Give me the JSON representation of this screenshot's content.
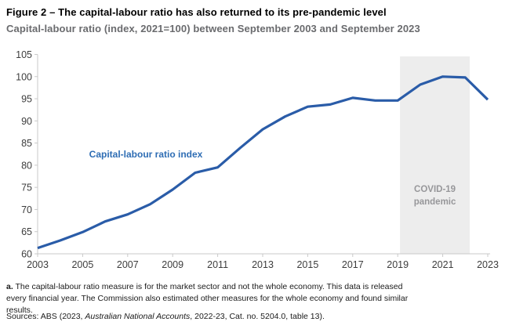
{
  "figure": {
    "title": "Figure 2 – The capital-labour ratio has also returned to its pre-pandemic level",
    "subtitle": "Capital-labour ratio (index, 2021=100) between September 2003 and September 2023"
  },
  "chart_data": {
    "type": "line",
    "title": "Capital-labour ratio (index, 2021=100) between September 2003 and September 2023",
    "x": [
      2003,
      2004,
      2005,
      2006,
      2007,
      2008,
      2009,
      2010,
      2011,
      2012,
      2013,
      2014,
      2015,
      2016,
      2017,
      2018,
      2019,
      2020,
      2021,
      2022,
      2023
    ],
    "values": [
      61.3,
      63.0,
      64.9,
      67.3,
      68.9,
      71.2,
      74.5,
      78.3,
      79.5,
      83.9,
      88.1,
      91.0,
      93.2,
      93.7,
      95.2,
      94.6,
      94.6,
      98.2,
      100.0,
      99.8,
      94.8
    ],
    "series_label": "Capital-labour ratio index",
    "xlabel": "",
    "ylabel": "",
    "xlim": [
      2003,
      2023
    ],
    "ylim": [
      60,
      105
    ],
    "x_ticks": [
      2003,
      2005,
      2007,
      2009,
      2011,
      2013,
      2015,
      2017,
      2019,
      2021,
      2023
    ],
    "y_ticks": [
      60,
      65,
      70,
      75,
      80,
      85,
      90,
      95,
      100,
      105
    ],
    "grid": false,
    "legend_position": "inline-label",
    "annotation_band": {
      "label_line1": "COVID-19",
      "label_line2": "pandemic",
      "x_start": 2019.1,
      "x_end": 2022.2
    },
    "colors": {
      "line": "#2a5ca8",
      "series_label": "#2e6db4",
      "band": "#ededed",
      "band_label": "#97979a",
      "axis": "#c9c9c9",
      "tick_label": "#3d3d3d"
    }
  },
  "notes": {
    "footnote_marker": "a.",
    "footnote_text": " The capital-labour ratio measure is for the market sector and not the whole economy. This data is released every financial year. The Commission also estimated other measures for the whole economy and found similar results.",
    "sources_prefix": "Sources: ABS (2023, ",
    "sources_italic": "Australian National Accounts",
    "sources_suffix": ", 2022-23, Cat. no. 5204.0, table 13)."
  }
}
